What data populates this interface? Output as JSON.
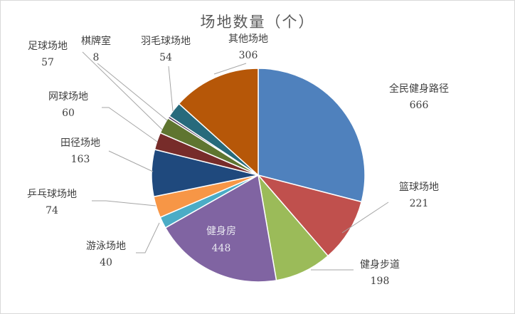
{
  "chart_data": {
    "type": "pie",
    "title": "场地数量（个）",
    "slices": [
      {
        "name": "全民健身路径",
        "value": 666,
        "color": "#4f81bd"
      },
      {
        "name": "篮球场地",
        "value": 221,
        "color": "#c0504d"
      },
      {
        "name": "健身步道",
        "value": 198,
        "color": "#9bbb59"
      },
      {
        "name": "健身房",
        "value": 448,
        "color": "#8064a2"
      },
      {
        "name": "游泳场地",
        "value": 40,
        "color": "#4bacc6"
      },
      {
        "name": "乒乓球场地",
        "value": 74,
        "color": "#f79646"
      },
      {
        "name": "田径场地",
        "value": 163,
        "color": "#1f497d"
      },
      {
        "name": "网球场地",
        "value": 60,
        "color": "#772c2a"
      },
      {
        "name": "足球场地",
        "value": 57,
        "color": "#5f7530"
      },
      {
        "name": "棋牌室",
        "value": 8,
        "color": "#4d3b62"
      },
      {
        "name": "羽毛球场地",
        "value": 54,
        "color": "#276a7c"
      },
      {
        "name": "其他场地",
        "value": 306,
        "color": "#b65708"
      }
    ]
  }
}
